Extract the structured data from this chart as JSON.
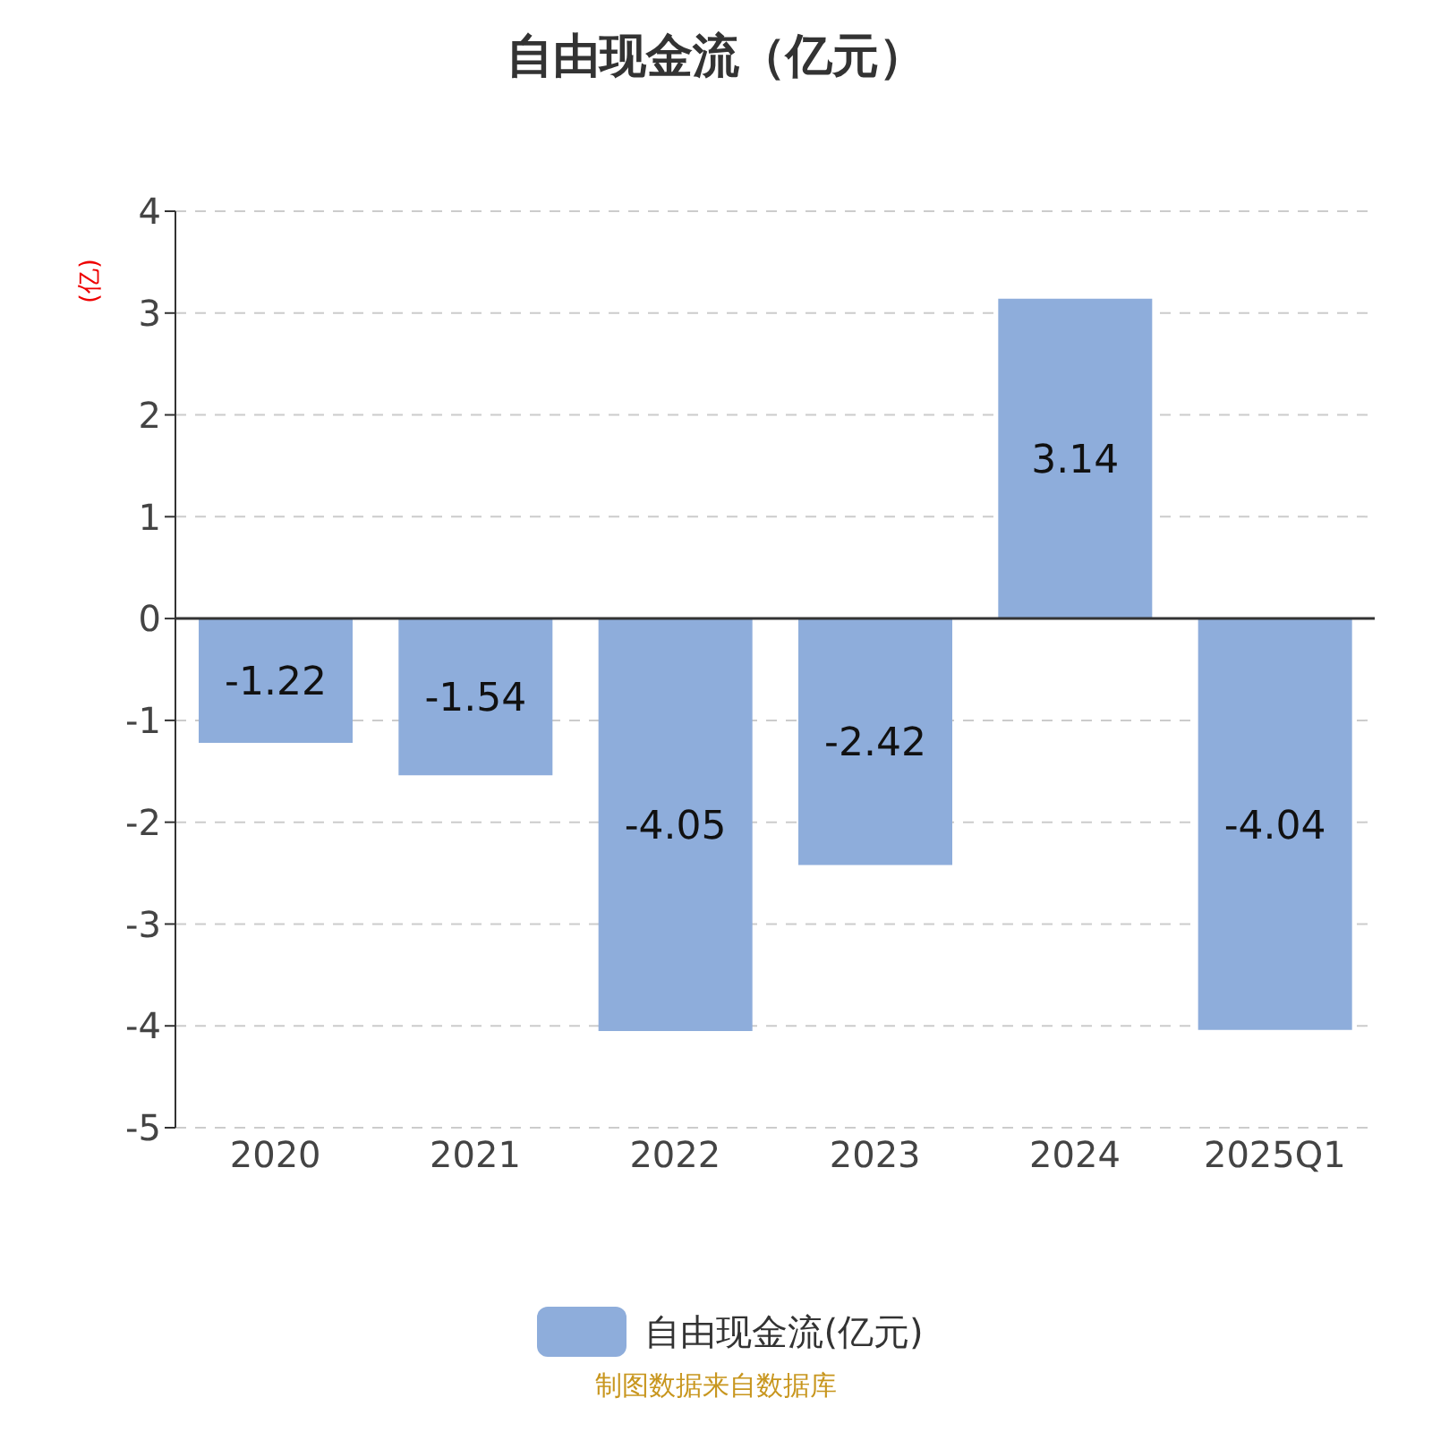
{
  "chart_data": {
    "type": "bar",
    "title": "自由现金流（亿元）",
    "ylabel": "(亿)",
    "categories": [
      "2020",
      "2021",
      "2022",
      "2023",
      "2024",
      "2025Q1"
    ],
    "series": [
      {
        "name": "自由现金流(亿元)",
        "color": "#8eaddb",
        "values": [
          -1.22,
          -1.54,
          -4.05,
          -2.42,
          3.14,
          -4.04
        ]
      }
    ],
    "ylim": [
      -5,
      4
    ],
    "yticks": [
      -5,
      -4,
      -3,
      -2,
      -1,
      0,
      1,
      2,
      3,
      4
    ],
    "grid": "y",
    "legend": "bottom",
    "data_labels": true,
    "annotations": [
      "制图数据来自数据库"
    ]
  }
}
